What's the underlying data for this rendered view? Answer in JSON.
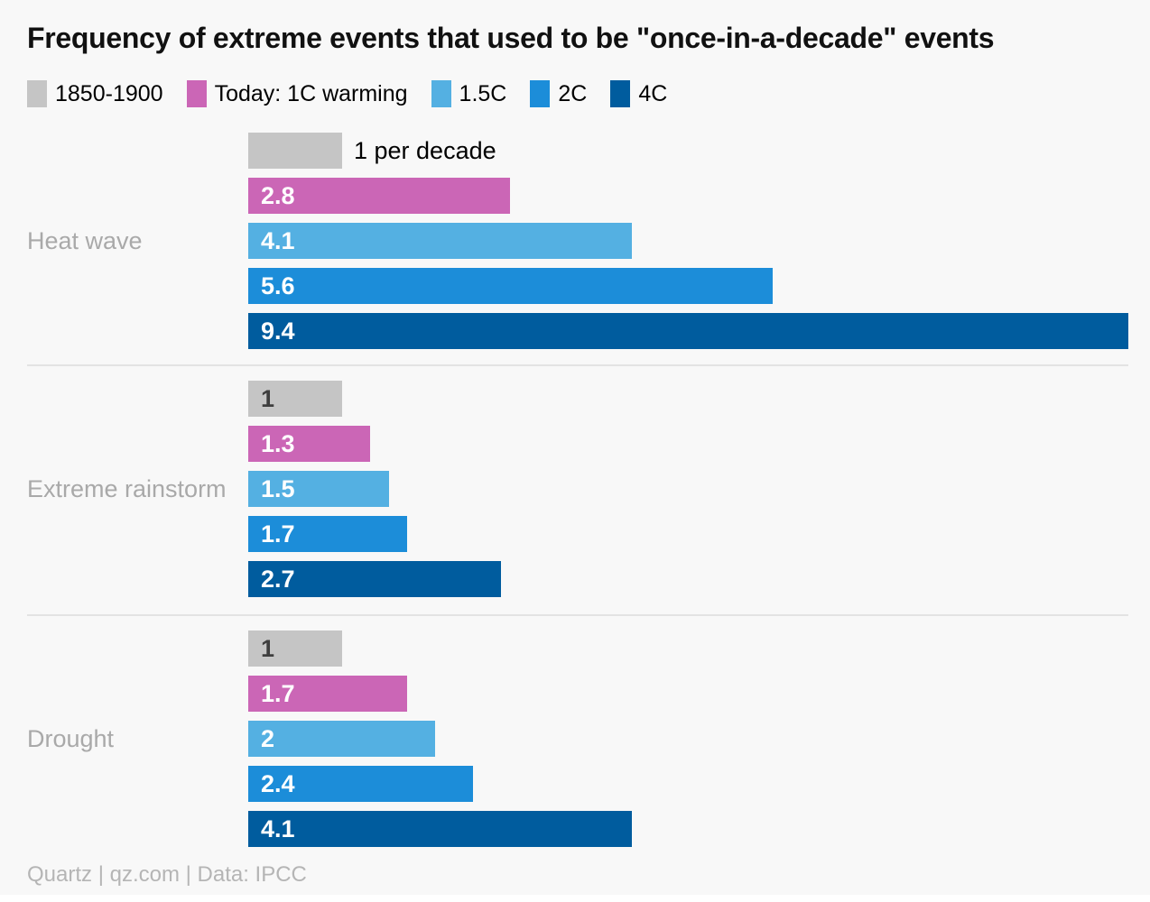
{
  "title": "Frequency of extreme events that used to be \"once-in-a-decade\" events",
  "footer": "Quartz | qz.com | Data: IPCC",
  "colors": {
    "background": "#f8f8f8",
    "baseline_gray": "#c5c5c5",
    "today_magenta": "#cb66b6",
    "warming_1_5c_light_blue": "#54b0e2",
    "warming_2c_blue": "#1c8dd9",
    "warming_4c_dark_blue": "#005c9e",
    "divider": "#e3e3e3",
    "category_label_gray": "#a9a9a9",
    "footer_gray": "#b5b5b5",
    "bar_value_light": "#ffffff",
    "bar_value_dark": "#3f3f3f"
  },
  "legend": [
    {
      "label": "1850-1900",
      "color": "#c5c5c5"
    },
    {
      "label": "Today: 1C warming",
      "color": "#cb66b6"
    },
    {
      "label": "1.5C",
      "color": "#54b0e2"
    },
    {
      "label": "2C",
      "color": "#1c8dd9"
    },
    {
      "label": "4C",
      "color": "#005c9e"
    }
  ],
  "chart_data": {
    "type": "bar",
    "orientation": "horizontal",
    "title": "Frequency of extreme events that used to be \"once-in-a-decade\" events",
    "categories": [
      "Heat wave",
      "Extreme rainstorm",
      "Drought"
    ],
    "series": [
      {
        "name": "1850-1900",
        "values": [
          1,
          1,
          1
        ]
      },
      {
        "name": "Today: 1C warming",
        "values": [
          2.8,
          1.3,
          1.7
        ]
      },
      {
        "name": "1.5C",
        "values": [
          4.1,
          1.5,
          2
        ]
      },
      {
        "name": "2C",
        "values": [
          5.6,
          1.7,
          2.4
        ]
      },
      {
        "name": "4C",
        "values": [
          9.4,
          2.7,
          4.1
        ]
      }
    ],
    "baseline_annotation": "1 per decade",
    "xmax": 9.4,
    "value_labels_on_bars": true,
    "grid": false,
    "legend_position": "top",
    "unit": "events per decade",
    "source": "Quartz | qz.com | Data: IPCC"
  }
}
